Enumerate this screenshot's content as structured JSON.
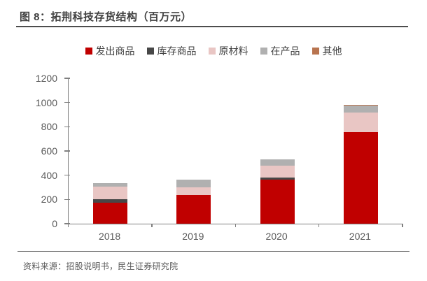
{
  "title": "图 8：拓荆科技存货结构（百万元）",
  "footer": {
    "source_label": "资料来源：招股说明书，民生证券研究院"
  },
  "colors": {
    "accent_red": "#c00000",
    "dark_gray": "#474747",
    "pink": "#e9c6c4",
    "light_gray": "#b0b0b0",
    "brown": "#b8744f",
    "axis_line": "#7f7f7f",
    "axis_text": "#595959",
    "title_text": "#3f3f3f"
  },
  "chart_data": {
    "type": "bar",
    "stacked": true,
    "title": "拓荆科技存货结构（百万元）",
    "categories": [
      "2018",
      "2019",
      "2020",
      "2021"
    ],
    "series": [
      {
        "name": "发出商品",
        "color": "#c00000",
        "values": [
          175,
          235,
          365,
          755
        ]
      },
      {
        "name": "库存商品",
        "color": "#474747",
        "values": [
          27,
          4,
          18,
          3
        ]
      },
      {
        "name": "原材料",
        "color": "#e9c6c4",
        "values": [
          105,
          60,
          95,
          160
        ]
      },
      {
        "name": "在产品",
        "color": "#b0b0b0",
        "values": [
          25,
          62,
          52,
          55
        ]
      },
      {
        "name": "其他",
        "color": "#b8744f",
        "values": [
          5,
          2,
          2,
          8
        ]
      }
    ],
    "xlabel": "",
    "ylabel": "",
    "ylim": [
      0,
      1200
    ],
    "yticks": [
      0,
      200,
      400,
      600,
      800,
      1000,
      1200
    ],
    "grid": false,
    "legend_position": "top"
  }
}
